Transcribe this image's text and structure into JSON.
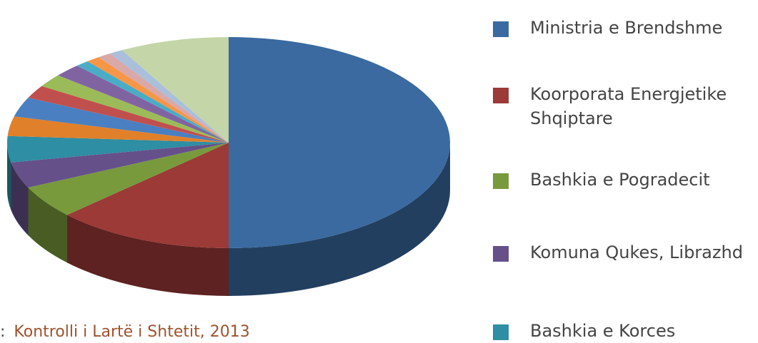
{
  "chart_data": {
    "type": "pie",
    "categories": [
      "Ministria e Brendshme",
      "Koorporata Energjetike Shqiptare",
      "Bashkia e Pogradecit",
      "Komuna Qukes, Librazhd",
      "Bashkia e Korces",
      null,
      null,
      null,
      null,
      null,
      null,
      null,
      null,
      null,
      null
    ],
    "values": [
      50,
      13,
      5,
      4,
      4,
      3,
      3,
      2,
      2,
      2,
      1,
      1,
      1,
      1,
      8
    ],
    "colors": [
      "#3a6aa0",
      "#9b3a37",
      "#789a3c",
      "#65508a",
      "#2e8ea3",
      "#e0802a",
      "#4a7fc1",
      "#c0504d",
      "#9bbb59",
      "#8064a2",
      "#4bacc6",
      "#f79646",
      "#d9a8a8",
      "#a9bfdc",
      "#c4d6a8"
    ],
    "source_label": ":",
    "source": "Kontrolli i Lartë i Shtetit, 2013"
  }
}
